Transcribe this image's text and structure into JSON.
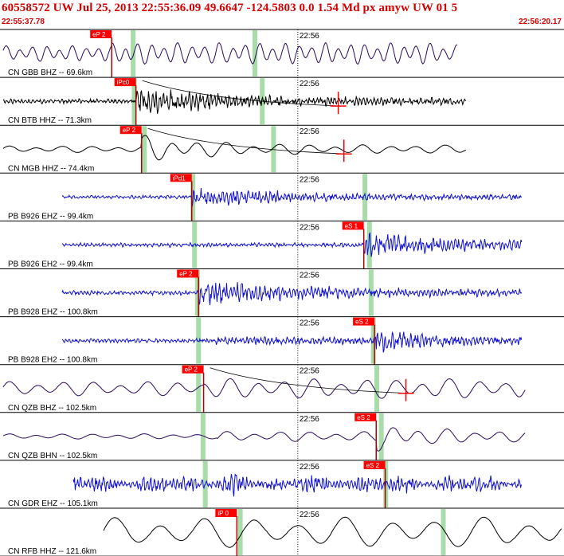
{
  "header": {
    "event_line": "60558572 UW Jul 25, 2013 22:55:36.09   49.6647 -124.5803  0.0 1.54 Md px amyw UW 01   5",
    "time_start": "22:55:37.78",
    "time_end": "22:56:20.17"
  },
  "colors": {
    "header_text": "#d40000",
    "pick_box": "#ff0000",
    "pick_line": "#b00000",
    "window_band": "#a8dca8",
    "trace_purple": "#2a0a5a",
    "trace_black": "#000000",
    "trace_blue": "#1010d0",
    "separator": "#000000",
    "coda_line": "#000000"
  },
  "minute_mark_label": "22:56",
  "traces": [
    {
      "label": "CN GBB BHZ -- 69.6km",
      "color": "purple",
      "pick": "eP 2",
      "pick_t": 0.198,
      "bands": [
        0.236,
        0.452
      ],
      "coda": false,
      "amp": 0.6,
      "env": "low",
      "freq": "mid"
    },
    {
      "label": "CN BTB HHZ -- 71.3km",
      "color": "black",
      "pick": "iPc0",
      "pick_t": 0.241,
      "bands": [
        0.238,
        0.465
      ],
      "coda": true,
      "amp": 0.6,
      "env": "burst",
      "freq": "high"
    },
    {
      "label": "CN MGB HHZ -- 74.4km",
      "color": "black",
      "pick": "eP 2",
      "pick_t": 0.251,
      "bands": [
        0.256,
        0.485
      ],
      "coda": true,
      "amp": 0.55,
      "env": "lowburst",
      "freq": "low"
    },
    {
      "label": "PB B926 EHZ -- 99.4km",
      "color": "blue",
      "pick": "iPd1",
      "pick_t": 0.34,
      "bands": [
        0.342,
        0.647
      ],
      "coda": false,
      "amp": 0.45,
      "env": "burst",
      "freq": "high"
    },
    {
      "label": "PB B926 EH2 -- 99.4km",
      "color": "blue",
      "pick": "eS 1",
      "pick_t": 0.645,
      "bands": [
        0.345,
        0.655
      ],
      "coda": false,
      "amp": 0.55,
      "env": "burst",
      "freq": "high"
    },
    {
      "label": "PB B928 EHZ -- 100.8km",
      "color": "blue",
      "pick": "eP 2",
      "pick_t": 0.352,
      "bands": [
        0.35,
        0.658
      ],
      "coda": false,
      "amp": 0.6,
      "env": "burst",
      "freq": "high"
    },
    {
      "label": "PB B928 EH2 -- 100.8km",
      "color": "blue",
      "pick": "eS 2",
      "pick_t": 0.664,
      "bands": [
        0.352,
        0.662
      ],
      "coda": false,
      "amp": 0.55,
      "env": "lateburst",
      "freq": "high"
    },
    {
      "label": "CN QZB BHZ -- 102.5km",
      "color": "purple",
      "pick": "eP 2",
      "pick_t": 0.361,
      "bands": [
        0.352,
        0.668
      ],
      "coda": true,
      "amp": 0.55,
      "env": "low",
      "freq": "low"
    },
    {
      "label": "CN QZB BHN -- 102.5km",
      "color": "purple",
      "pick": "eS 2",
      "pick_t": 0.667,
      "bands": [
        0.36,
        0.676
      ],
      "coda": false,
      "amp": 0.6,
      "env": "lateburst",
      "freq": "low"
    },
    {
      "label": "CN GDR EHZ -- 105.1km",
      "color": "blue",
      "pick": "eS 2",
      "pick_t": 0.683,
      "bands": [
        0.364,
        0.684
      ],
      "coda": false,
      "amp": 0.6,
      "env": "noisy",
      "freq": "high"
    },
    {
      "label": "CN RFB HHZ -- 121.6km",
      "color": "black",
      "pick": "iP 0",
      "pick_t": 0.42,
      "bands": [
        0.426,
        0.786
      ],
      "coda": false,
      "amp": 0.75,
      "env": "big",
      "freq": "vlow"
    }
  ]
}
